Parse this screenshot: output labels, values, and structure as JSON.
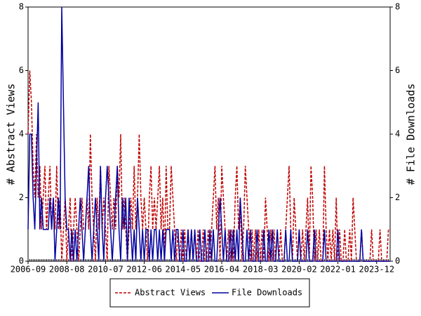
{
  "chart_data": {
    "type": "line",
    "x": [
      "2006-09",
      "2006-10",
      "2006-11",
      "2006-12",
      "2007-01",
      "2007-02",
      "2007-03",
      "2007-04",
      "2007-05",
      "2007-06",
      "2007-07",
      "2007-08",
      "2007-09",
      "2007-10",
      "2007-11",
      "2007-12",
      "2008-01",
      "2008-02",
      "2008-03",
      "2008-04",
      "2008-05",
      "2008-06",
      "2008-07",
      "2008-08",
      "2008-09",
      "2008-10",
      "2008-11",
      "2008-12",
      "2009-01",
      "2009-02",
      "2009-03",
      "2009-04",
      "2009-05",
      "2009-06",
      "2009-07",
      "2009-08",
      "2009-09",
      "2009-10",
      "2009-11",
      "2009-12",
      "2010-01",
      "2010-02",
      "2010-03",
      "2010-04",
      "2010-05",
      "2010-06",
      "2010-07",
      "2010-08",
      "2010-09",
      "2010-10",
      "2010-11",
      "2010-12",
      "2011-01",
      "2011-02",
      "2011-03",
      "2011-04",
      "2011-05",
      "2011-06",
      "2011-07",
      "2011-08",
      "2011-09",
      "2011-10",
      "2011-11",
      "2011-12",
      "2012-01",
      "2012-02",
      "2012-03",
      "2012-04",
      "2012-05",
      "2012-06",
      "2012-07",
      "2012-08",
      "2012-09",
      "2012-10",
      "2012-11",
      "2012-12",
      "2013-01",
      "2013-02",
      "2013-03",
      "2013-04",
      "2013-05",
      "2013-06",
      "2013-07",
      "2013-08",
      "2013-09",
      "2013-10",
      "2013-11",
      "2013-12",
      "2014-01",
      "2014-02",
      "2014-03",
      "2014-04",
      "2014-05",
      "2014-06",
      "2014-07",
      "2014-08",
      "2014-09",
      "2014-10",
      "2014-11",
      "2014-12",
      "2015-01",
      "2015-02",
      "2015-03",
      "2015-04",
      "2015-05",
      "2015-06",
      "2015-07",
      "2015-08",
      "2015-09",
      "2015-10",
      "2015-11",
      "2015-12",
      "2016-01",
      "2016-02",
      "2016-03",
      "2016-04",
      "2016-05",
      "2016-06",
      "2016-07",
      "2016-08",
      "2016-09",
      "2016-10",
      "2016-11",
      "2016-12",
      "2017-01",
      "2017-02",
      "2017-03",
      "2017-04",
      "2017-05",
      "2017-06",
      "2017-07",
      "2017-08",
      "2017-09",
      "2017-10",
      "2017-11",
      "2017-12",
      "2018-01",
      "2018-02",
      "2018-03",
      "2018-04",
      "2018-05",
      "2018-06",
      "2018-07",
      "2018-08",
      "2018-09",
      "2018-10",
      "2018-11",
      "2018-12",
      "2019-01",
      "2019-02",
      "2019-03",
      "2019-04",
      "2019-05",
      "2019-06",
      "2019-07",
      "2019-08",
      "2019-09",
      "2019-10",
      "2019-11",
      "2019-12",
      "2020-01",
      "2020-02",
      "2020-03",
      "2020-04",
      "2020-05",
      "2020-06",
      "2020-07",
      "2020-08",
      "2020-09",
      "2020-10",
      "2020-11",
      "2020-12",
      "2021-01",
      "2021-02",
      "2021-03",
      "2021-04",
      "2021-05",
      "2021-06",
      "2021-07",
      "2021-08",
      "2021-09",
      "2021-10",
      "2021-11",
      "2021-12",
      "2022-01",
      "2022-02",
      "2022-03",
      "2022-04",
      "2022-05",
      "2022-06",
      "2022-07",
      "2022-08",
      "2022-09",
      "2022-10",
      "2022-11",
      "2022-12",
      "2023-01",
      "2023-02",
      "2023-03",
      "2023-04",
      "2023-05",
      "2023-06",
      "2023-07",
      "2023-08",
      "2023-09",
      "2023-10",
      "2023-11",
      "2023-12",
      "2024-01",
      "2024-02",
      "2024-03",
      "2024-04",
      "2024-05",
      "2024-06",
      "2024-07",
      "2024-08"
    ],
    "xticks": [
      "2006-09",
      "2008-08",
      "2010-07",
      "2012-06",
      "2014-05",
      "2016-04",
      "2018-03",
      "2020-02",
      "2022-01",
      "2023-12"
    ],
    "ylabel": "# Abstract Views",
    "y2label": "# File Downloads",
    "ylim": [
      0,
      8
    ],
    "yticks": [
      0,
      2,
      4,
      6,
      8
    ],
    "y2lim": [
      0,
      8
    ],
    "y2ticks": [
      0,
      2,
      4,
      6,
      8
    ],
    "series": [
      {
        "name": "Abstract Views",
        "color": "#c00000",
        "dashed": true,
        "values": [
          4,
          6,
          5,
          3,
          2,
          4,
          2,
          3,
          1,
          2,
          3,
          1,
          2,
          3,
          1,
          2,
          1,
          3,
          1,
          2,
          0,
          1,
          2,
          0,
          1,
          2,
          0,
          1,
          2,
          1,
          0,
          1,
          2,
          1,
          1,
          2,
          1,
          4,
          2,
          1,
          0,
          2,
          1,
          3,
          1,
          2,
          1,
          0,
          3,
          2,
          1,
          2,
          1,
          3,
          2,
          4,
          1,
          2,
          1,
          0,
          1,
          2,
          1,
          3,
          1,
          2,
          4,
          2,
          1,
          2,
          1,
          0,
          2,
          3,
          1,
          2,
          1,
          2,
          3,
          1,
          2,
          0,
          3,
          1,
          1,
          3,
          2,
          1,
          0,
          1,
          0,
          1,
          0,
          1,
          0,
          1,
          0,
          1,
          0,
          1,
          0,
          1,
          0,
          0,
          1,
          0,
          0,
          1,
          0,
          1,
          2,
          3,
          1,
          2,
          0,
          3,
          2,
          1,
          0,
          1,
          0,
          1,
          0,
          2,
          3,
          1,
          2,
          0,
          1,
          3,
          2,
          1,
          0,
          1,
          0,
          1,
          0,
          1,
          0,
          1,
          0,
          2,
          1,
          0,
          1,
          0,
          1,
          0,
          1,
          0,
          1,
          0,
          0,
          1,
          2,
          3,
          1,
          0,
          2,
          1,
          0,
          1,
          0,
          1,
          0,
          1,
          2,
          0,
          3,
          2,
          0,
          1,
          0,
          1,
          0,
          0,
          3,
          1,
          0,
          1,
          0,
          1,
          0,
          2,
          0,
          1,
          0,
          0,
          1,
          0,
          0,
          1,
          0,
          2,
          1,
          0,
          0,
          0,
          1,
          0,
          0,
          0,
          0,
          0,
          1,
          0,
          0,
          0,
          0,
          1,
          0,
          0,
          0,
          0,
          1,
          1
        ]
      },
      {
        "name": "File Downloads",
        "color": "#0000a0",
        "axis": "y2",
        "values": [
          1,
          4,
          4,
          2,
          1,
          3,
          5,
          1,
          2,
          1,
          1,
          1,
          1,
          2,
          1,
          2,
          0,
          1,
          2,
          1,
          8,
          5,
          2,
          1,
          1,
          0,
          1,
          0,
          1,
          0,
          1,
          2,
          1,
          0,
          1,
          2,
          3,
          1,
          0,
          1,
          2,
          1,
          0,
          3,
          1,
          0,
          2,
          3,
          2,
          1,
          0,
          1,
          2,
          3,
          1,
          0,
          2,
          1,
          2,
          0,
          2,
          1,
          0,
          1,
          0,
          2,
          1,
          0,
          1,
          0,
          1,
          1,
          0,
          1,
          0,
          1,
          1,
          0,
          1,
          0,
          1,
          0,
          1,
          1,
          1,
          0,
          1,
          0,
          1,
          1,
          0,
          0,
          1,
          0,
          0,
          1,
          0,
          1,
          0,
          1,
          0,
          0,
          1,
          0,
          0,
          1,
          0,
          0,
          1,
          0,
          1,
          0,
          0,
          1,
          2,
          1,
          0,
          1,
          0,
          0,
          1,
          0,
          1,
          0,
          1,
          0,
          2,
          1,
          0,
          0,
          1,
          0,
          1,
          0,
          0,
          0,
          1,
          0,
          0,
          0,
          1,
          0,
          0,
          1,
          0,
          1,
          0,
          0,
          1,
          0,
          0,
          0,
          0,
          1,
          0,
          0,
          1,
          0,
          0,
          0,
          0,
          1,
          0,
          0,
          0,
          0,
          1,
          0,
          0,
          0,
          1,
          0,
          0,
          0,
          0,
          0,
          1,
          0,
          0,
          0,
          0,
          0,
          0,
          0,
          1,
          0,
          0,
          0,
          0,
          0,
          0,
          0,
          0,
          0,
          0,
          0,
          0,
          0,
          1,
          0,
          0,
          0,
          0,
          0,
          0,
          0,
          0,
          0,
          0,
          0,
          0,
          0,
          0,
          0,
          0,
          0
        ]
      }
    ]
  }
}
